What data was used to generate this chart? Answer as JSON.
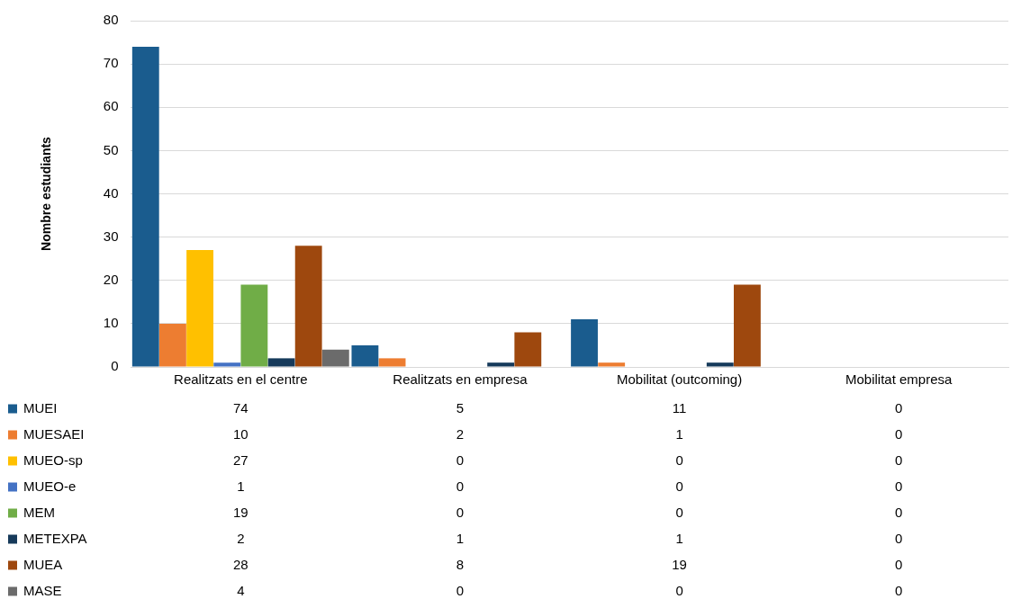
{
  "chart_data": {
    "type": "bar",
    "ylabel": "Nombre estudiants",
    "categories": [
      "Realitzats en el centre",
      "Realitzats en empresa",
      "Mobilitat (outcoming)",
      "Mobilitat empresa"
    ],
    "series": [
      {
        "name": "MUEI",
        "color": "#1a5c8e",
        "values": [
          74,
          5,
          11,
          0
        ]
      },
      {
        "name": "MUESAEI",
        "color": "#ed7d31",
        "values": [
          10,
          2,
          1,
          0
        ]
      },
      {
        "name": "MUEO-sp",
        "color": "#ffc000",
        "values": [
          27,
          0,
          0,
          0
        ]
      },
      {
        "name": "MUEO-e",
        "color": "#4472c4",
        "values": [
          1,
          0,
          0,
          0
        ]
      },
      {
        "name": "MEM",
        "color": "#70ad47",
        "values": [
          19,
          0,
          0,
          0
        ]
      },
      {
        "name": "METEXPA",
        "color": "#163a5a",
        "values": [
          2,
          1,
          1,
          0
        ]
      },
      {
        "name": "MUEA",
        "color": "#9e480e",
        "values": [
          28,
          8,
          19,
          0
        ]
      },
      {
        "name": "MASE",
        "color": "#6b6b6b",
        "values": [
          4,
          0,
          0,
          0
        ]
      }
    ],
    "ylim": [
      0,
      80
    ],
    "yticks": [
      0,
      10,
      20,
      30,
      40,
      50,
      60,
      70,
      80
    ],
    "grid": "y",
    "legend": "bottom left",
    "data_labels": true
  }
}
